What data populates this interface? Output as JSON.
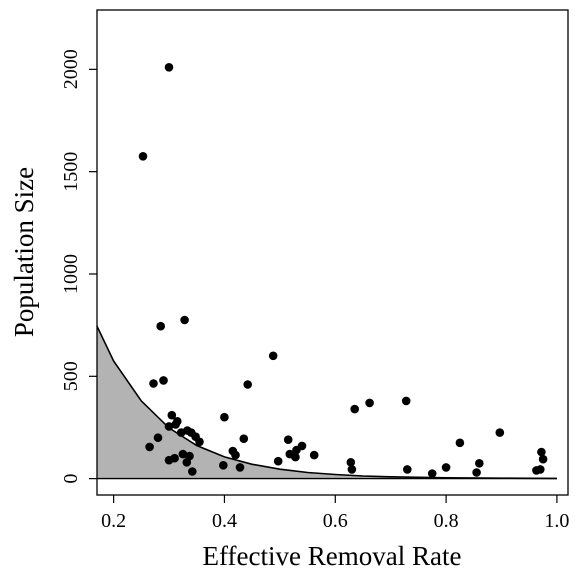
{
  "chart_data": {
    "type": "scatter",
    "title": "",
    "xlabel": "Effective Removal Rate",
    "ylabel": "Population Size",
    "xlim": [
      0.17,
      1.02
    ],
    "ylim": [
      -80,
      2290
    ],
    "x_ticks": [
      0.2,
      0.4,
      0.6,
      0.8,
      1.0
    ],
    "x_tick_labels": [
      "0.2",
      "0.4",
      "0.6",
      "0.8",
      "1.0"
    ],
    "y_ticks": [
      0,
      500,
      1000,
      1500,
      2000
    ],
    "y_tick_labels": [
      "0",
      "500",
      "1000",
      "1500",
      "2000"
    ],
    "grid": false,
    "legend": "none",
    "colors": {
      "points": "#000000",
      "shaded_region": "#b3b3b3",
      "curve": "#000000"
    },
    "curve": {
      "description_type": "threshold boundary",
      "x": [
        0.17,
        0.2,
        0.25,
        0.3,
        0.35,
        0.4,
        0.45,
        0.5,
        0.55,
        0.6,
        0.65,
        0.7,
        0.8,
        0.9,
        1.0
      ],
      "y": [
        745,
        575,
        380,
        248,
        162,
        106,
        70,
        46,
        30,
        20,
        13,
        9,
        4,
        2,
        1
      ]
    },
    "points": {
      "x": [
        0.253,
        0.3,
        0.285,
        0.328,
        0.29,
        0.272,
        0.265,
        0.28,
        0.3,
        0.312,
        0.322,
        0.333,
        0.34,
        0.348,
        0.355,
        0.3,
        0.31,
        0.325,
        0.337,
        0.342,
        0.332,
        0.305,
        0.315,
        0.4,
        0.398,
        0.415,
        0.42,
        0.428,
        0.435,
        0.442,
        0.488,
        0.497,
        0.515,
        0.518,
        0.528,
        0.53,
        0.54,
        0.562,
        0.628,
        0.63,
        0.635,
        0.662,
        0.728,
        0.73,
        0.775,
        0.8,
        0.825,
        0.855,
        0.86,
        0.897,
        0.963,
        0.97,
        0.972,
        0.975
      ],
      "y": [
        1575,
        2010,
        745,
        775,
        480,
        465,
        155,
        200,
        255,
        265,
        225,
        235,
        225,
        205,
        180,
        90,
        100,
        120,
        110,
        35,
        80,
        310,
        280,
        300,
        65,
        135,
        115,
        55,
        195,
        460,
        600,
        85,
        190,
        120,
        105,
        140,
        160,
        115,
        80,
        45,
        340,
        370,
        380,
        45,
        25,
        55,
        175,
        30,
        75,
        225,
        40,
        45,
        130,
        95
      ]
    }
  }
}
